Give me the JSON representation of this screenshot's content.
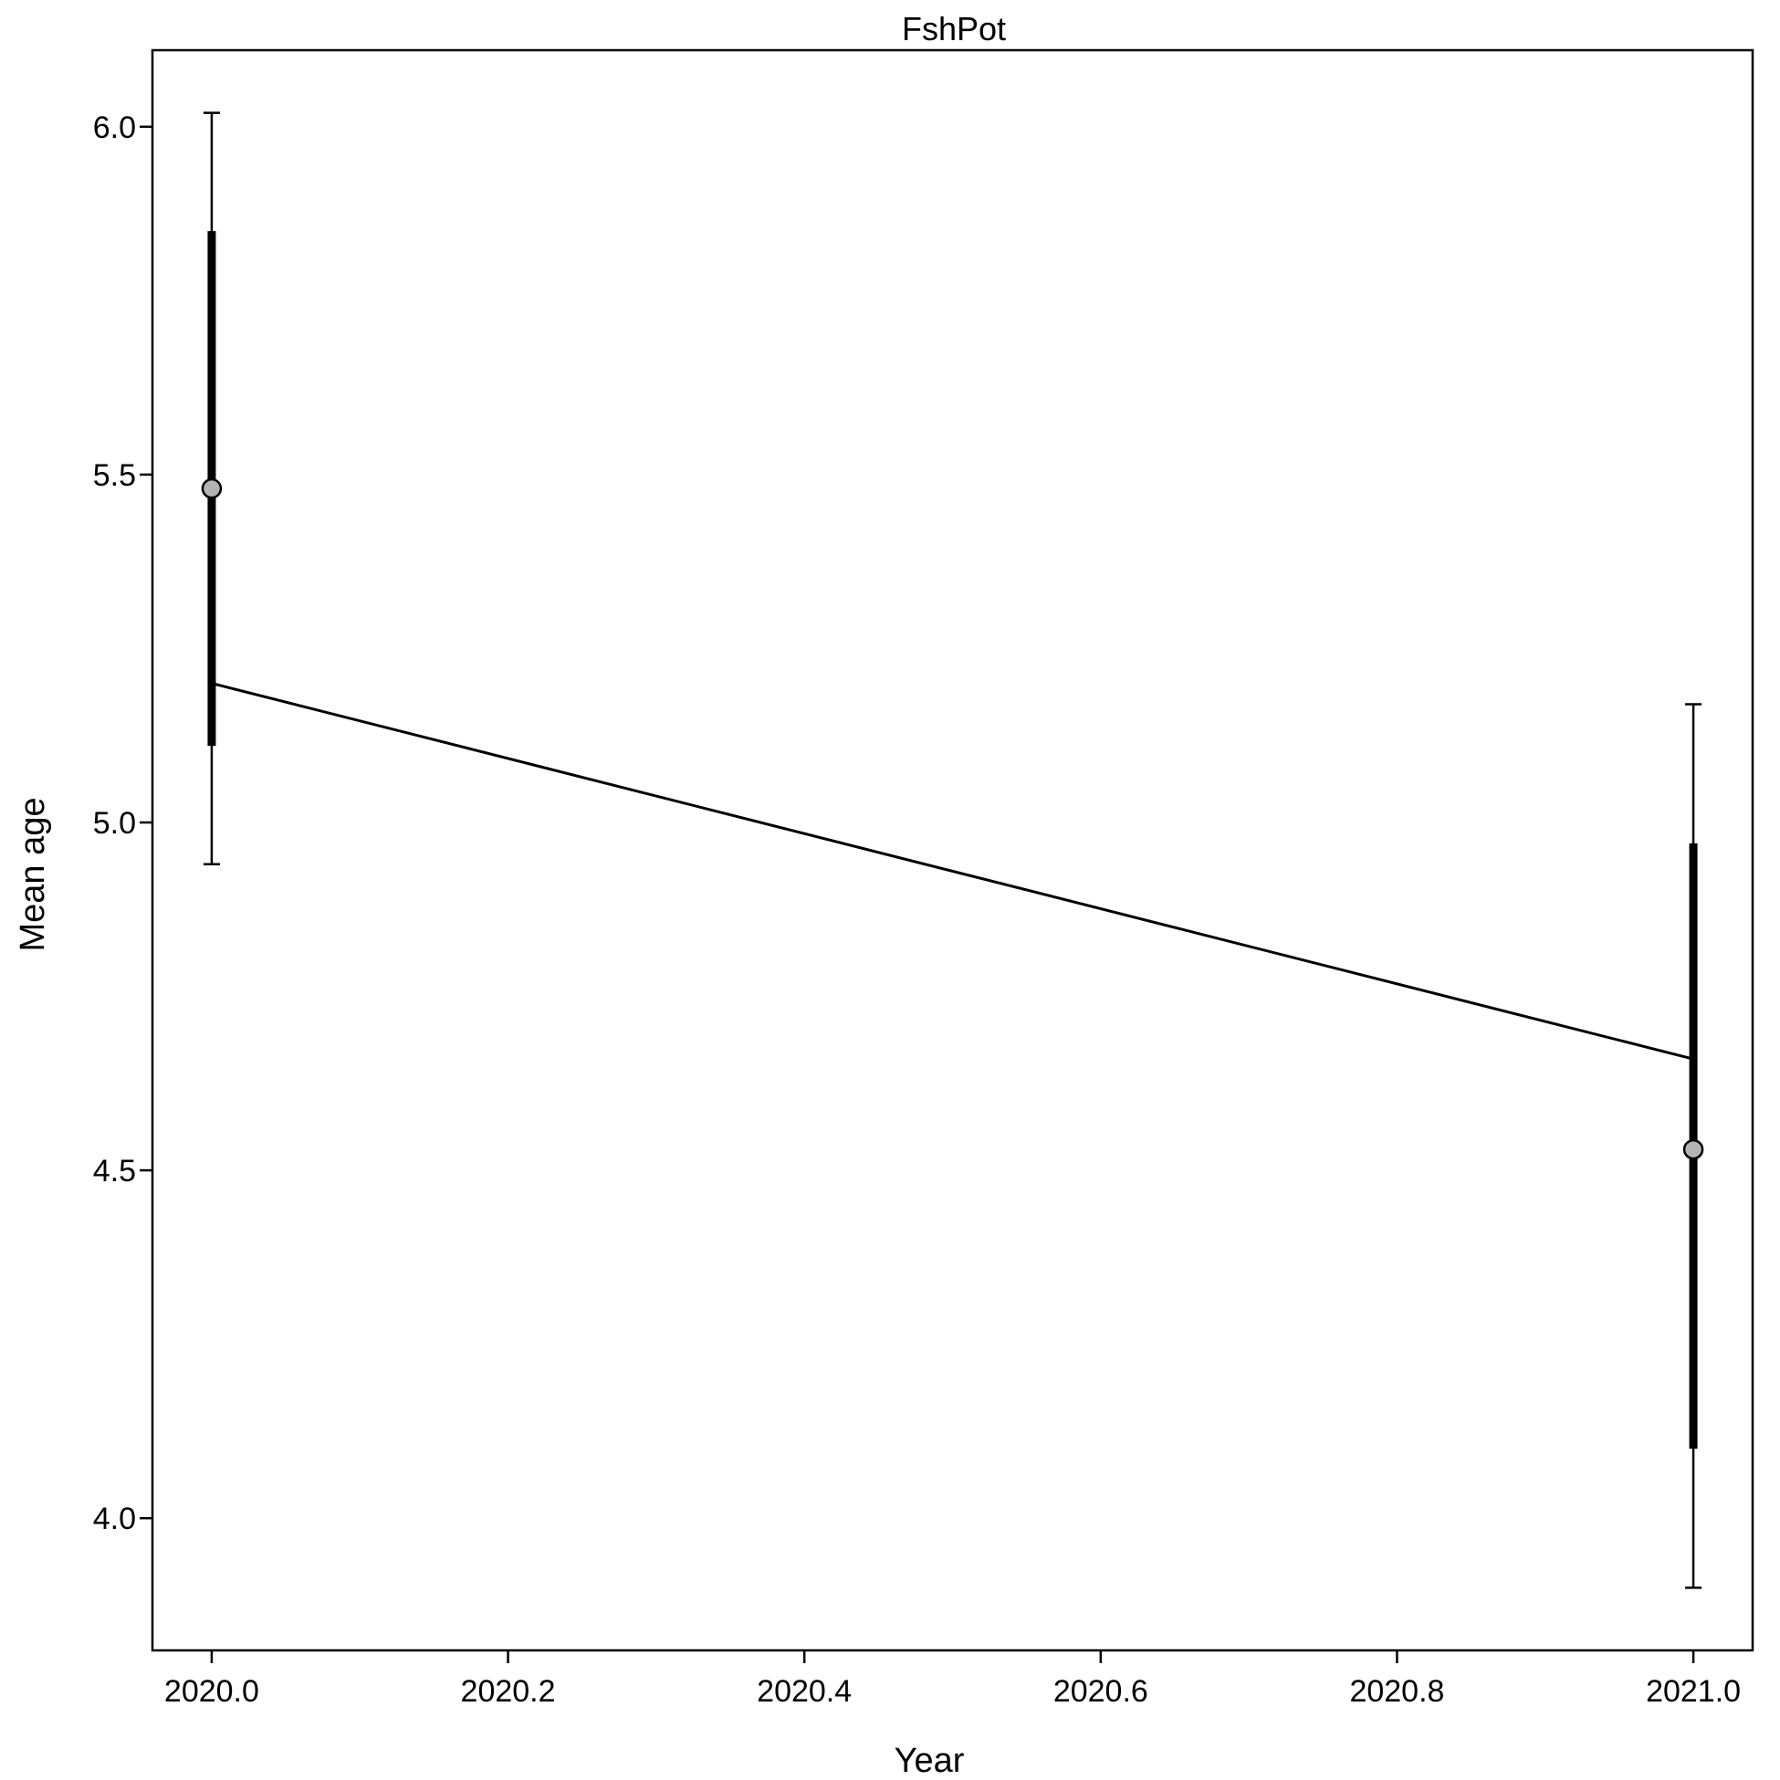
{
  "chart_data": {
    "type": "scatter",
    "title": "FshPot",
    "xlabel": "Year",
    "ylabel": "Mean age",
    "xlim": [
      2019.96,
      2021.04
    ],
    "ylim": [
      3.81,
      6.11
    ],
    "grid": false,
    "legend": "none",
    "xticks": [
      2020.0,
      2020.2,
      2020.4,
      2020.6,
      2020.8,
      2021.0
    ],
    "xtick_labels": [
      "2020.0",
      "2020.2",
      "2020.4",
      "2020.6",
      "2020.8",
      "2021.0"
    ],
    "yticks": [
      4.0,
      4.5,
      5.0,
      5.5,
      6.0
    ],
    "ytick_labels": [
      "4.0",
      "4.5",
      "5.0",
      "5.5",
      "6.0"
    ],
    "observed": {
      "x": [
        2020.0,
        2021.0
      ],
      "y": [
        5.48,
        4.53
      ],
      "inner_low": [
        5.11,
        4.1
      ],
      "inner_high": [
        5.85,
        4.97
      ],
      "outer_low": [
        4.94,
        3.9
      ],
      "outer_high": [
        6.02,
        5.17
      ]
    },
    "expected": {
      "x": [
        2020.0,
        2021.0
      ],
      "y": [
        5.2,
        4.66
      ]
    },
    "colors": {
      "point_fill": "#b3b3b3",
      "line": "#000000"
    }
  }
}
